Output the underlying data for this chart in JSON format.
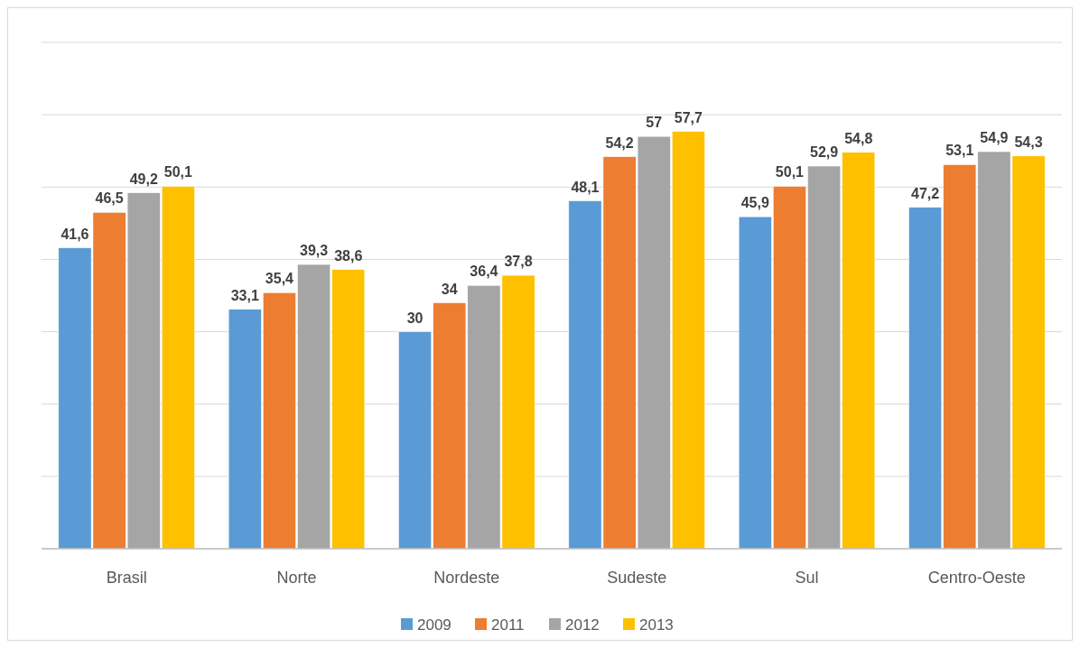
{
  "chart_data": {
    "type": "bar",
    "categories": [
      "Brasil",
      "Norte",
      "Nordeste",
      "Sudeste",
      "Sul",
      "Centro-Oeste"
    ],
    "series": [
      {
        "name": "2009",
        "color": "#5b9bd5",
        "values": [
          41.6,
          33.1,
          30,
          48.1,
          45.9,
          47.2
        ],
        "value_labels": [
          "41,6",
          "33,1",
          "30",
          "48,1",
          "45,9",
          "47,2"
        ]
      },
      {
        "name": "2011",
        "color": "#ed7d31",
        "values": [
          46.5,
          35.4,
          34,
          54.2,
          50.1,
          53.1
        ],
        "value_labels": [
          "46,5",
          "35,4",
          "34",
          "54,2",
          "50,1",
          "53,1"
        ]
      },
      {
        "name": "2012",
        "color": "#a5a5a5",
        "values": [
          49.2,
          39.3,
          36.4,
          57,
          52.9,
          54.9
        ],
        "value_labels": [
          "49,2",
          "39,3",
          "36,4",
          "57",
          "52,9",
          "54,9"
        ]
      },
      {
        "name": "2013",
        "color": "#ffc000",
        "values": [
          50.1,
          38.6,
          37.8,
          57.7,
          54.8,
          54.3
        ],
        "value_labels": [
          "50,1",
          "38,6",
          "37,8",
          "57,7",
          "54,8",
          "54,3"
        ]
      }
    ],
    "ylim": [
      0,
      70
    ],
    "yticks": [
      {
        "value": 0,
        "label": null
      },
      {
        "value": 10,
        "label": null
      },
      {
        "value": 20,
        "label": null
      },
      {
        "value": 30,
        "label": null
      },
      {
        "value": 40,
        "label": null
      },
      {
        "value": 50,
        "label": null
      },
      {
        "value": 60,
        "label": null
      },
      {
        "value": 70,
        "label": null
      }
    ],
    "grid": "y",
    "tick_labels": "x",
    "legend": "bottom"
  }
}
